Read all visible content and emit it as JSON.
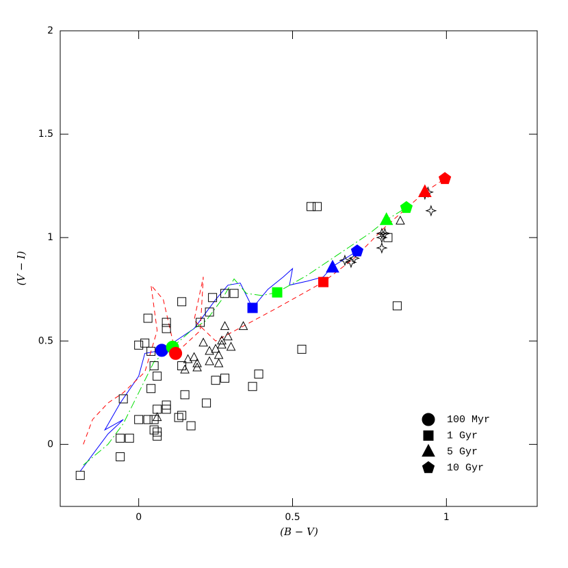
{
  "chart_data": {
    "type": "scatter",
    "xlabel": "(B − V)",
    "ylabel": "(V − I)",
    "xlim": [
      -0.255,
      1.295
    ],
    "ylim": [
      -0.3,
      2
    ],
    "xticks": [
      0,
      0.5,
      1
    ],
    "yticks": [
      0,
      0.5,
      1,
      1.5,
      2
    ],
    "series": [
      {
        "kind": "line",
        "line": "solid",
        "color": "#0000ff",
        "x": [
          -0.19,
          -0.15,
          -0.1,
          -0.05,
          -0.11,
          -0.06,
          0,
          0.02,
          0.075,
          0.12,
          0.18,
          0.2,
          0.25,
          0.29,
          0.33,
          0.35,
          0.37,
          0.42,
          0.47,
          0.5,
          0.49,
          0.55,
          0.6,
          0.63,
          0.71
        ],
        "y": [
          -0.13,
          -0.05,
          0.05,
          0.12,
          0.07,
          0.2,
          0.33,
          0.44,
          0.455,
          0.5,
          0.56,
          0.6,
          0.7,
          0.77,
          0.78,
          0.72,
          0.66,
          0.75,
          0.81,
          0.85,
          0.77,
          0.79,
          0.81,
          0.86,
          0.935
        ]
      },
      {
        "kind": "line",
        "line": "dashdot",
        "color": "#00dd00",
        "x": [
          -0.18,
          -0.1,
          -0.05,
          0,
          0.05,
          0.11,
          0.17,
          0.22,
          0.27,
          0.31,
          0.35,
          0.4,
          0.45,
          0.55,
          0.65,
          0.75,
          0.805,
          0.87
        ],
        "y": [
          -0.1,
          0.0,
          0.1,
          0.25,
          0.4,
          0.47,
          0.55,
          0.6,
          0.7,
          0.8,
          0.73,
          0.72,
          0.735,
          0.82,
          0.92,
          1.02,
          1.085,
          1.145
        ]
      },
      {
        "kind": "line",
        "line": "dashed",
        "color": "#ff0000",
        "x": [
          -0.18,
          -0.15,
          -0.1,
          -0.05,
          0.02,
          0.06,
          0.04,
          0.08,
          0.12,
          0.2,
          0.21,
          0.18,
          0.25,
          0.35,
          0.45,
          0.6,
          0.7,
          0.8,
          0.93,
          0.995
        ],
        "y": [
          0.0,
          0.12,
          0.2,
          0.25,
          0.35,
          0.55,
          0.77,
          0.7,
          0.44,
          0.55,
          0.81,
          0.6,
          0.5,
          0.58,
          0.66,
          0.785,
          0.9,
          1.05,
          1.22,
          1.285
        ]
      },
      {
        "kind": "points",
        "marker": "square",
        "filled": false,
        "color": "#000000",
        "x": [
          -0.19,
          -0.06,
          -0.06,
          -0.03,
          -0.05,
          0,
          0.03,
          0.05,
          0.05,
          0.06,
          0.06,
          0.06,
          0.04,
          0.09,
          0.09,
          0.13,
          0.14,
          0.17,
          0.15,
          0.06,
          0.05,
          0,
          0.02,
          0.04,
          0.03,
          0.09,
          0.09,
          0.14,
          0.14,
          0.2,
          0.23,
          0.24,
          0.28,
          0.31,
          0.22,
          0.25,
          0.28,
          0.37,
          0.39,
          0.53,
          0.56,
          0.58,
          0.81,
          0.84
        ],
        "y": [
          -0.15,
          -0.06,
          0.03,
          0.03,
          0.22,
          0.12,
          0.12,
          0.12,
          0.07,
          0.04,
          0.06,
          0.17,
          0.27,
          0.17,
          0.19,
          0.13,
          0.14,
          0.09,
          0.24,
          0.33,
          0.38,
          0.48,
          0.49,
          0.45,
          0.61,
          0.56,
          0.59,
          0.69,
          0.38,
          0.59,
          0.64,
          0.71,
          0.73,
          0.73,
          0.2,
          0.31,
          0.32,
          0.28,
          0.34,
          0.46,
          1.15,
          1.15,
          1.0,
          0.67
        ]
      },
      {
        "kind": "points",
        "marker": "triangle",
        "filled": false,
        "color": "#000000",
        "x": [
          0.06,
          0.28,
          0.34,
          0.21,
          0.16,
          0.15,
          0.18,
          0.19,
          0.19,
          0.23,
          0.26,
          0.26,
          0.27,
          0.27,
          0.29,
          0.3,
          0.25,
          0.23,
          0.85
        ],
        "y": [
          0.13,
          0.57,
          0.57,
          0.49,
          0.41,
          0.36,
          0.42,
          0.39,
          0.37,
          0.4,
          0.39,
          0.43,
          0.48,
          0.5,
          0.52,
          0.47,
          0.46,
          0.45,
          1.08
        ]
      },
      {
        "kind": "points",
        "marker": "star",
        "filled": false,
        "color": "#000000",
        "x": [
          0.67,
          0.69,
          0.7,
          0.79,
          0.79,
          0.79,
          0.93,
          0.94,
          0.95,
          0.8
        ],
        "y": [
          0.89,
          0.88,
          0.9,
          1.02,
          1.0,
          0.95,
          1.21,
          1.22,
          1.13,
          1.02
        ]
      },
      {
        "kind": "points",
        "name": "100 Myr",
        "marker": "circle",
        "filled": true,
        "legend_color": "#000000",
        "colors": [
          "#0000ff",
          "#00ff00",
          "#ff0000"
        ],
        "x": [
          0.075,
          0.11,
          0.12
        ],
        "y": [
          0.455,
          0.47,
          0.44
        ]
      },
      {
        "kind": "points",
        "name": "1 Gyr",
        "marker": "square",
        "filled": true,
        "legend_color": "#000000",
        "colors": [
          "#0000ff",
          "#00ff00",
          "#ff0000"
        ],
        "x": [
          0.37,
          0.45,
          0.6
        ],
        "y": [
          0.66,
          0.735,
          0.785
        ]
      },
      {
        "kind": "points",
        "name": "5 Gyr",
        "marker": "triangle",
        "filled": true,
        "legend_color": "#000000",
        "colors": [
          "#0000ff",
          "#00ff00",
          "#ff0000"
        ],
        "x": [
          0.63,
          0.805,
          0.93
        ],
        "y": [
          0.855,
          1.085,
          1.22
        ]
      },
      {
        "kind": "points",
        "name": "10 Gyr",
        "marker": "pentagon",
        "filled": true,
        "legend_color": "#000000",
        "colors": [
          "#0000ff",
          "#00ff00",
          "#ff0000"
        ],
        "x": [
          0.71,
          0.87,
          0.995
        ],
        "y": [
          0.935,
          1.145,
          1.285
        ]
      }
    ]
  }
}
